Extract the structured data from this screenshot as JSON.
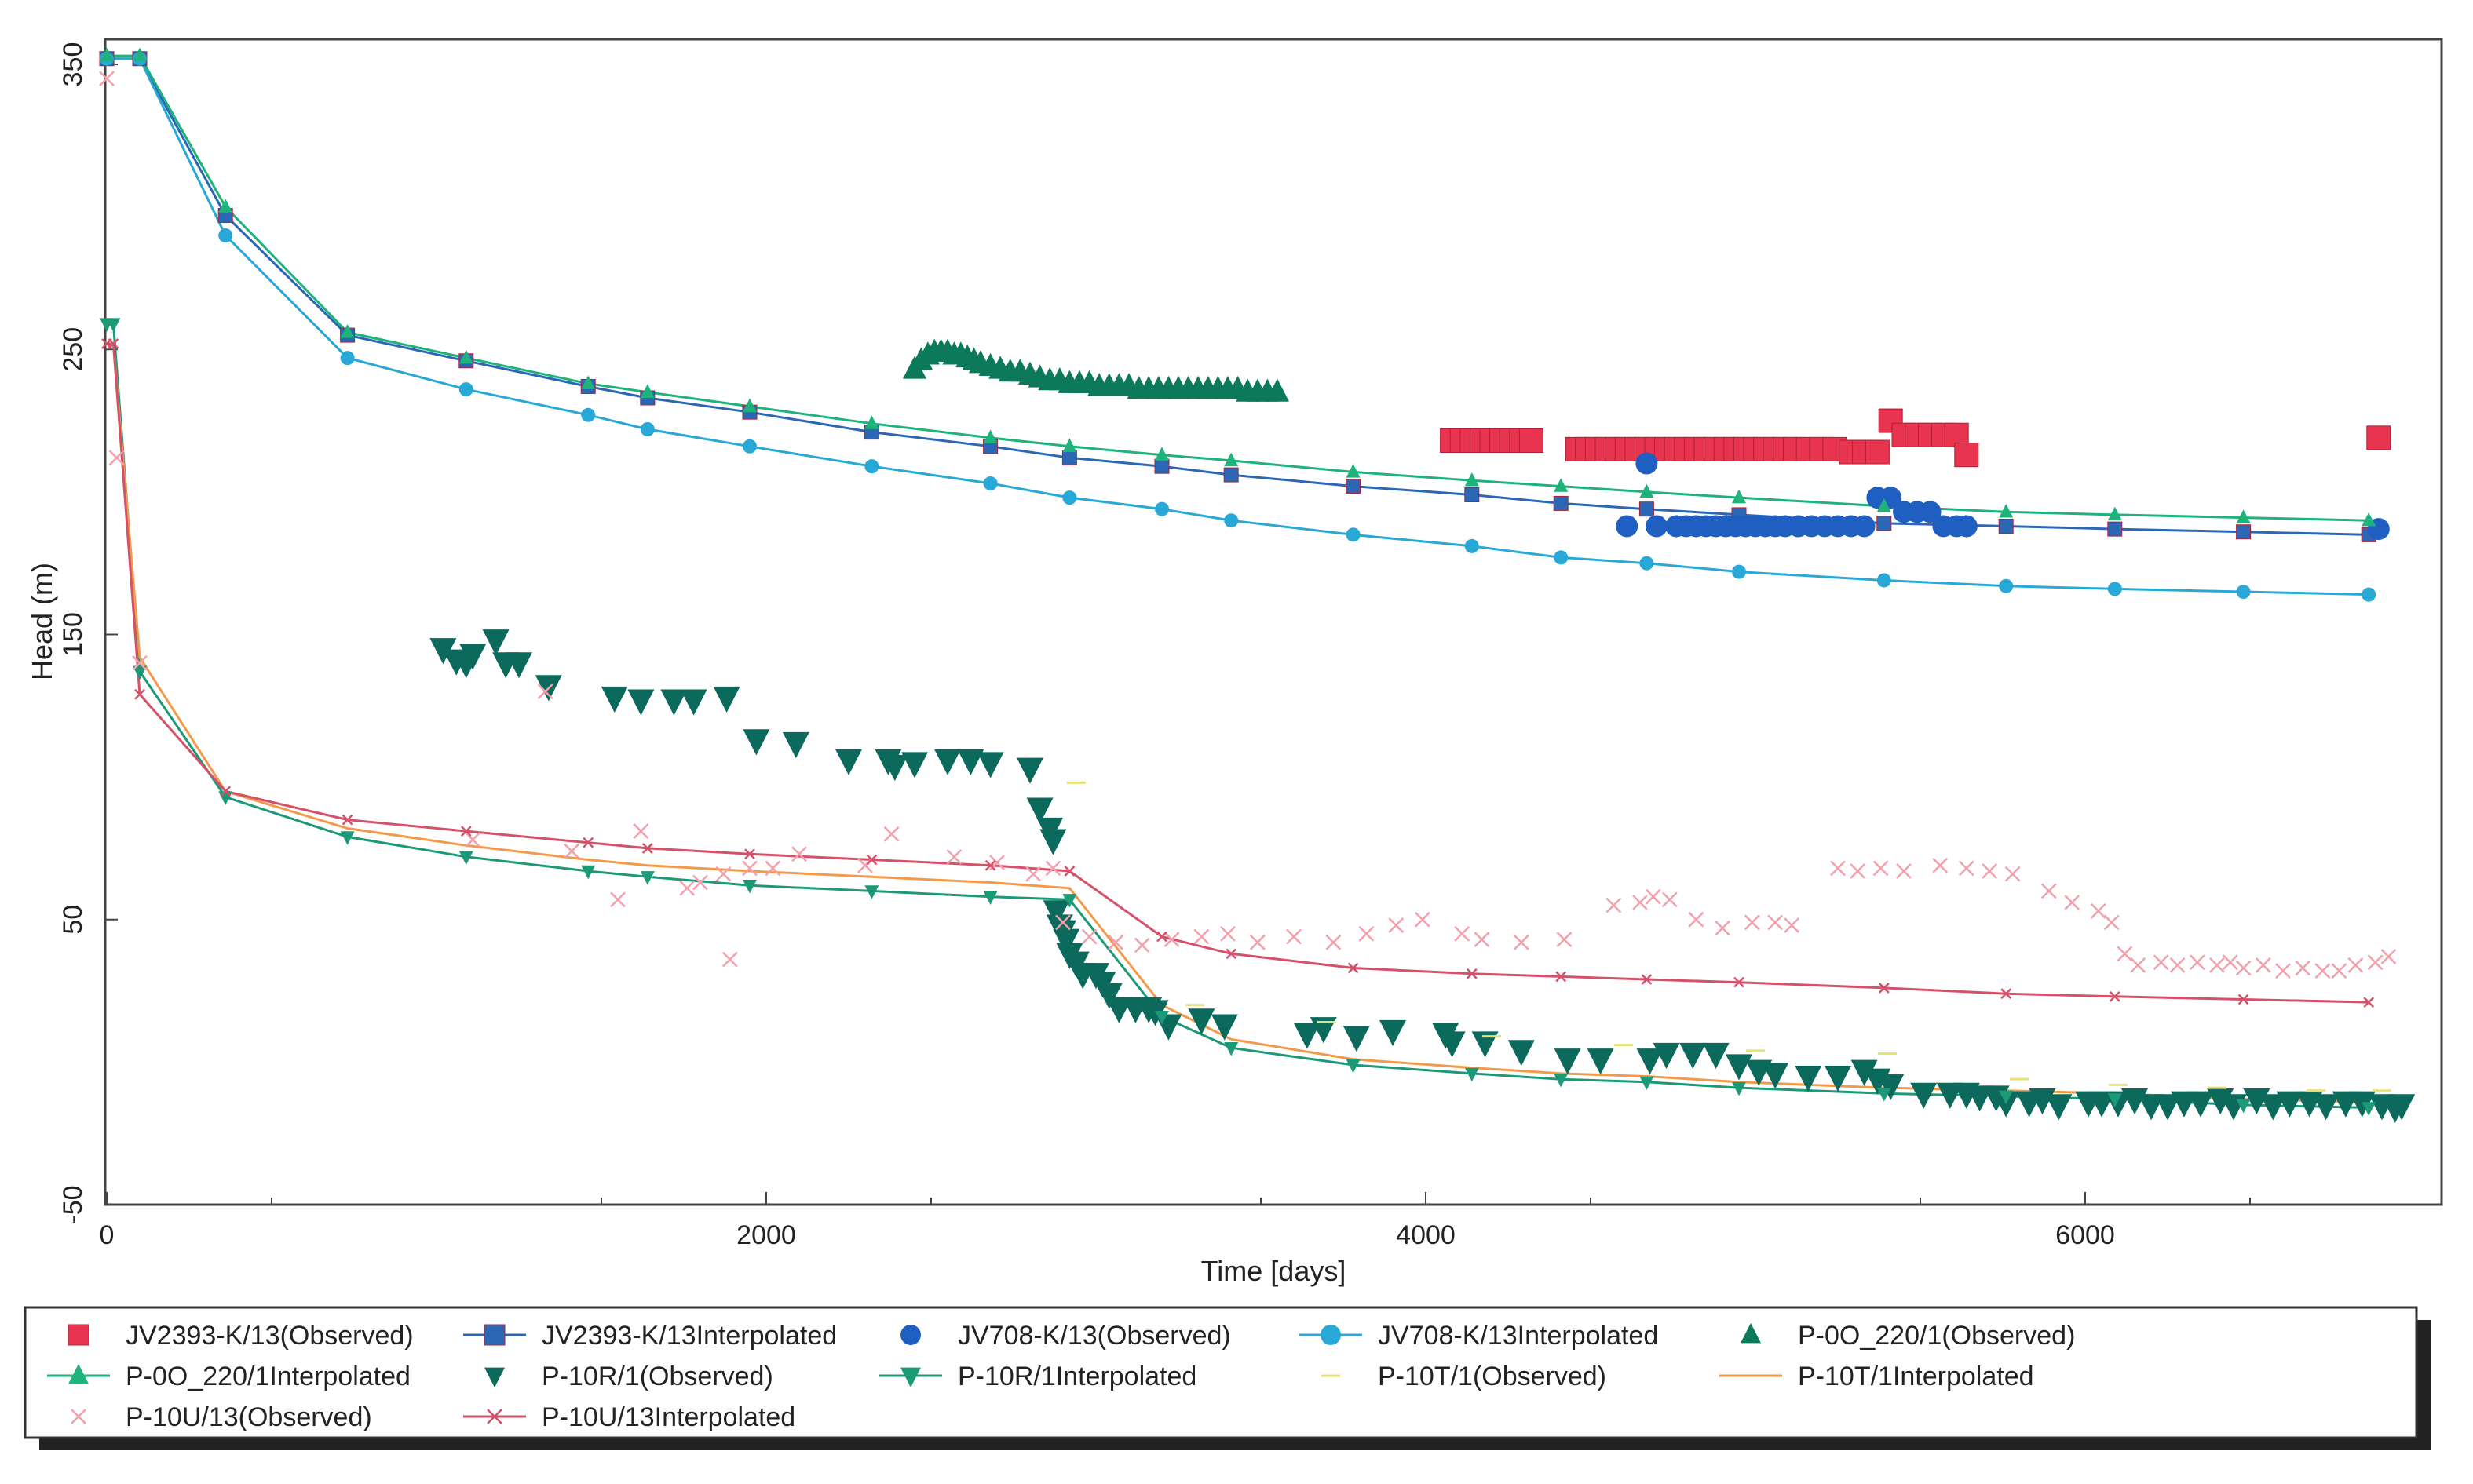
{
  "chart_data": {
    "type": "scatter",
    "title": "",
    "xlabel": "Time  [days]",
    "ylabel": "Head (m)",
    "xlim": [
      0,
      7000
    ],
    "ylim": [
      -50,
      360
    ],
    "x_ticks": [
      0,
      2000,
      4000,
      6000
    ],
    "x_tick_labels": [
      "0",
      "2000",
      "4000",
      "6000"
    ],
    "y_ticks": [
      -50,
      50,
      150,
      250,
      350
    ],
    "y_tick_labels": [
      "-50",
      "50",
      "150",
      "250",
      "350"
    ],
    "grid": false,
    "legend_position": "bottom",
    "series": [
      {
        "name": "JV2393-K/13(Observed)",
        "kind": "observed",
        "marker": "square",
        "color": "#e8344e",
        "x": [
          4080,
          4110,
          4140,
          4170,
          4200,
          4230,
          4260,
          4290,
          4320,
          4460,
          4490,
          4520,
          4550,
          4580,
          4610,
          4640,
          4670,
          4700,
          4730,
          4760,
          4790,
          4820,
          4850,
          4880,
          4910,
          4940,
          4970,
          5000,
          5030,
          5060,
          5090,
          5120,
          5160,
          5200,
          5240,
          5290,
          5330,
          5370,
          5410,
          5450,
          5490,
          5530,
          5570,
          5610,
          5640,
          6890
        ],
        "y": [
          218,
          218,
          218,
          218,
          218,
          218,
          218,
          218,
          218,
          215,
          215,
          215,
          215,
          215,
          215,
          215,
          215,
          215,
          215,
          215,
          215,
          215,
          215,
          215,
          215,
          215,
          215,
          215,
          215,
          215,
          215,
          215,
          215,
          215,
          215,
          214,
          214,
          214,
          225,
          220,
          220,
          220,
          220,
          220,
          213,
          219
        ]
      },
      {
        "name": "JV2393-K/13Interpolated",
        "kind": "interpolated",
        "marker": "square",
        "color": "#2c67b5",
        "x": [
          0,
          100,
          360,
          730,
          1090,
          1460,
          1640,
          1950,
          2320,
          2680,
          2920,
          3200,
          3410,
          3780,
          4140,
          4410,
          4670,
          4950,
          5390,
          5760,
          6090,
          6480,
          6860
        ],
        "y": [
          352,
          352,
          297,
          255,
          246,
          237,
          233,
          228,
          221,
          216,
          212,
          209,
          206,
          202,
          199,
          196,
          194,
          192,
          189,
          188,
          187,
          186,
          185
        ]
      },
      {
        "name": "JV708-K/13(Observed)",
        "kind": "observed",
        "marker": "circle",
        "color": "#1f5fc2",
        "x": [
          4610,
          4670,
          4700,
          4760,
          4790,
          4820,
          4850,
          4880,
          4910,
          4940,
          4970,
          5000,
          5030,
          5060,
          5090,
          5130,
          5170,
          5210,
          5250,
          5290,
          5330,
          5370,
          5410,
          5450,
          5490,
          5530,
          5570,
          5610,
          5640,
          6890
        ],
        "y": [
          188,
          210,
          188,
          188,
          188,
          188,
          188,
          188,
          188,
          188,
          188,
          188,
          188,
          188,
          188,
          188,
          188,
          188,
          188,
          188,
          188,
          198,
          198,
          193,
          193,
          193,
          188,
          188,
          188,
          187
        ]
      },
      {
        "name": "JV708-K/13Interpolated",
        "kind": "interpolated",
        "marker": "circle",
        "color": "#27a8d6",
        "x": [
          0,
          100,
          360,
          730,
          1090,
          1460,
          1640,
          1950,
          2320,
          2680,
          2920,
          3200,
          3410,
          3780,
          4140,
          4410,
          4670,
          4950,
          5390,
          5760,
          6090,
          6480,
          6860
        ],
        "y": [
          352,
          352,
          290,
          247,
          236,
          227,
          222,
          216,
          209,
          203,
          198,
          194,
          190,
          185,
          181,
          177,
          175,
          172,
          169,
          167,
          166,
          165,
          164
        ]
      },
      {
        "name": "P-0O_220/1(Observed)",
        "kind": "observed",
        "marker": "triangle-up",
        "color": "#0c7a5a",
        "x": [
          2450,
          2470,
          2490,
          2510,
          2530,
          2550,
          2570,
          2590,
          2610,
          2630,
          2650,
          2680,
          2710,
          2740,
          2770,
          2800,
          2830,
          2860,
          2890,
          2920,
          2950,
          2980,
          3010,
          3040,
          3070,
          3100,
          3130,
          3160,
          3190,
          3220,
          3250,
          3280,
          3310,
          3340,
          3370,
          3400,
          3430,
          3460,
          3490,
          3520,
          3550
        ],
        "y": [
          243,
          246,
          248,
          249,
          249,
          249,
          248,
          248,
          247,
          246,
          245,
          244,
          243,
          242,
          242,
          241,
          240,
          239,
          239,
          238,
          238,
          238,
          237,
          237,
          237,
          237,
          236,
          236,
          236,
          236,
          236,
          236,
          236,
          236,
          236,
          236,
          236,
          235,
          235,
          235,
          235
        ]
      },
      {
        "name": "P-0O_220/1Interpolated",
        "kind": "interpolated",
        "marker": "triangle-up",
        "color": "#1db37a",
        "x": [
          0,
          100,
          360,
          730,
          1090,
          1460,
          1640,
          1950,
          2320,
          2680,
          2920,
          3200,
          3410,
          3780,
          4140,
          4410,
          4670,
          4950,
          5390,
          5760,
          6090,
          6480,
          6860
        ],
        "y": [
          353,
          353,
          300,
          256,
          247,
          238,
          235,
          230,
          224,
          219,
          216,
          213,
          211,
          207,
          204,
          202,
          200,
          198,
          195,
          193,
          192,
          191,
          190
        ]
      },
      {
        "name": "P-10R/1(Observed)",
        "kind": "observed",
        "marker": "triangle-down",
        "color": "#0b6a5c",
        "x": [
          1020,
          1060,
          1090,
          1110,
          1180,
          1210,
          1250,
          1340,
          1540,
          1620,
          1720,
          1780,
          1880,
          1970,
          2090,
          2250,
          2370,
          2390,
          2450,
          2550,
          2620,
          2680,
          2800,
          2830,
          2860,
          2870,
          2880,
          2890,
          2900,
          2910,
          2920,
          2940,
          2960,
          3000,
          3020,
          3040,
          3070,
          3120,
          3160,
          3180,
          3220,
          3320,
          3390,
          3640,
          3690,
          3790,
          3900,
          4060,
          4080,
          4180,
          4290,
          4430,
          4530,
          4680,
          4730,
          4810,
          4880,
          4950,
          5010,
          5060,
          5160,
          5250,
          5330,
          5370,
          5410,
          5510,
          5590,
          5640,
          5680,
          5730,
          5760,
          5830,
          5870,
          5920,
          6010,
          6050,
          6100,
          6150,
          6200,
          6250,
          6300,
          6350,
          6410,
          6450,
          6520,
          6570,
          6620,
          6680,
          6730,
          6790,
          6840,
          6900,
          6940,
          6960
        ],
        "y": [
          145,
          141,
          140,
          143,
          148,
          140,
          140,
          132,
          128,
          127,
          127,
          127,
          128,
          113,
          112,
          106,
          106,
          104,
          105,
          106,
          106,
          105,
          103,
          89,
          82,
          78,
          53,
          48,
          46,
          43,
          38,
          35,
          31,
          31,
          28,
          24,
          19,
          19,
          19,
          18,
          13,
          15,
          13,
          10,
          12,
          9,
          11,
          10,
          7,
          7,
          4,
          1,
          1,
          1,
          3,
          3,
          3,
          -1,
          -3,
          -4,
          -5,
          -5,
          -3,
          -6,
          -8,
          -11,
          -11,
          -11,
          -12,
          -12,
          -14,
          -14,
          -13,
          -15,
          -14,
          -14,
          -14,
          -13,
          -15,
          -15,
          -14,
          -14,
          -13,
          -15,
          -13,
          -15,
          -14,
          -14,
          -15,
          -14,
          -14,
          -15,
          -16,
          -15
        ]
      },
      {
        "name": "P-10R/1Interpolated",
        "kind": "interpolated",
        "marker": "triangle-down",
        "color": "#1c9a78",
        "x": [
          0,
          20,
          100,
          360,
          730,
          1090,
          1460,
          1640,
          1950,
          2320,
          2680,
          2920,
          3200,
          3410,
          3780,
          4140,
          4410,
          4670,
          4950,
          5390,
          5760,
          6090,
          6480,
          6860
        ],
        "y": [
          259,
          259,
          137,
          93,
          79,
          72,
          67,
          65,
          62,
          60,
          58,
          57,
          16,
          5,
          -1,
          -4,
          -6,
          -7,
          -9,
          -11,
          -12,
          -13,
          -15,
          -16
        ]
      },
      {
        "name": "P-10T/1(Observed)",
        "kind": "observed",
        "marker": "tick",
        "color": "#e6e27a",
        "x": [
          2940,
          3300,
          3700,
          4200,
          4600,
          5000,
          5400,
          5800,
          6100,
          6400,
          6700,
          6900
        ],
        "y": [
          98,
          20,
          14,
          9,
          6,
          4,
          3,
          -6,
          -8,
          -9,
          -10,
          -10
        ]
      },
      {
        "name": "P-10T/1Interpolated",
        "kind": "interpolated",
        "marker": "none",
        "color": "#f29a4a",
        "x": [
          0,
          20,
          100,
          360,
          730,
          1090,
          1460,
          1640,
          1950,
          2320,
          2680,
          2920,
          3200,
          3410,
          3780,
          4140,
          4410,
          4670,
          4950,
          5390,
          5760,
          6090,
          6480,
          6860
        ],
        "y": [
          252,
          252,
          142,
          95,
          82,
          76,
          71,
          69,
          67,
          65,
          63,
          61,
          20,
          8,
          1,
          -2,
          -4,
          -5,
          -7,
          -9,
          -10,
          -11,
          -13,
          -14
        ]
      },
      {
        "name": "P-10U/13(Observed)",
        "kind": "observed",
        "marker": "x",
        "color": "#f3a0ac",
        "x": [
          0,
          30,
          100,
          1110,
          1330,
          1410,
          1550,
          1620,
          1760,
          1800,
          1870,
          1890,
          1950,
          2020,
          2100,
          2300,
          2380,
          2570,
          2700,
          2810,
          2870,
          2900,
          2980,
          3060,
          3140,
          3230,
          3320,
          3400,
          3490,
          3600,
          3720,
          3820,
          3910,
          3990,
          4110,
          4170,
          4290,
          4420,
          4570,
          4650,
          4690,
          4740,
          4820,
          4900,
          4990,
          5060,
          5110,
          5250,
          5310,
          5380,
          5450,
          5560,
          5640,
          5710,
          5780,
          5890,
          5960,
          6040,
          6080,
          6120,
          6160,
          6230,
          6280,
          6340,
          6400,
          6440,
          6480,
          6540,
          6600,
          6660,
          6720,
          6770,
          6820,
          6880,
          6920
        ],
        "y": [
          345,
          212,
          140,
          78,
          130,
          74,
          57,
          81,
          61,
          63,
          66,
          36,
          68,
          68,
          73,
          69,
          80,
          72,
          70,
          66,
          68,
          49,
          44,
          42,
          41,
          43,
          44,
          45,
          42,
          44,
          42,
          45,
          48,
          50,
          45,
          43,
          42,
          43,
          55,
          56,
          58,
          57,
          50,
          47,
          49,
          49,
          48,
          68,
          67,
          68,
          67,
          69,
          68,
          67,
          66,
          60,
          56,
          53,
          49,
          38,
          34,
          35,
          34,
          35,
          34,
          35,
          33,
          34,
          32,
          33,
          32,
          32,
          34,
          35,
          37
        ]
      },
      {
        "name": "P-10U/13Interpolated",
        "kind": "interpolated",
        "marker": "x",
        "color": "#d5516a",
        "x": [
          0,
          20,
          100,
          360,
          730,
          1090,
          1460,
          1640,
          1950,
          2320,
          2680,
          2920,
          3200,
          3410,
          3780,
          4140,
          4410,
          4670,
          4950,
          5390,
          5760,
          6090,
          6480,
          6860
        ],
        "y": [
          252,
          252,
          129,
          95,
          85,
          81,
          77,
          75,
          73,
          71,
          69,
          67,
          44,
          38,
          33,
          31,
          30,
          29,
          28,
          26,
          24,
          23,
          22,
          21
        ]
      }
    ]
  }
}
